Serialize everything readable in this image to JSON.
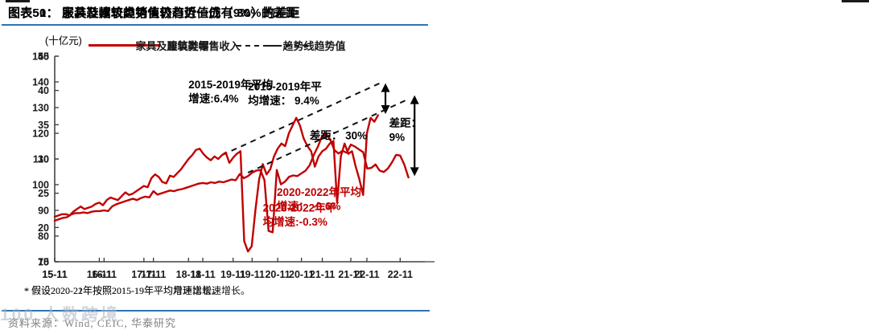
{
  "colors": {
    "series_red": "#C00000",
    "trend_black": "#1a1a1a",
    "rule_blue": "#2E74B5",
    "source_gray": "#8f8f8f"
  },
  "watermark": "100 人数跨境",
  "charts": [
    {
      "title": "图表50：  服装鞋帽较趋势值仍有近一成（9%）的差距",
      "unit_label": "(十亿元)",
      "legend": [
        {
          "label": "服装鞋帽",
          "style": "solid"
        },
        {
          "label": "趋势线",
          "style": "dashed"
        }
      ],
      "footnote": "* 假设2020-21年按照2015-19年平均月环比增速增长。",
      "source": "资料来源：Wind, CEIC, 华泰研究",
      "annotations": [
        {
          "name": "avg-growth-2015-2019",
          "lines": [
            "2015-2019年平均",
            "增速:6.4%"
          ],
          "color": "#000000",
          "x": 36,
          "v": 137.5
        },
        {
          "name": "avg-growth-2020-2022",
          "lines": [
            "2020-2022年平",
            "均增速:-0.3%"
          ],
          "color": "#C00000",
          "x": 56,
          "v": 89.5
        },
        {
          "name": "gap-label",
          "lines": [
            "差距：",
            "9%"
          ],
          "color": "#000000",
          "x": 90,
          "v": 122.5
        }
      ],
      "chart_data": {
        "type": "line",
        "title": "服装鞋帽较趋势值仍有近一成（9%）的差距",
        "ylabel": "十亿元",
        "ylim": [
          70,
          150
        ],
        "ytick_step": 10,
        "x_domain": [
          0,
          97
        ],
        "x_ticks": [
          "15-11",
          "16-11",
          "17-11",
          "18-11",
          "19-11",
          "20-11",
          "21-11",
          "22-11"
        ],
        "x_start": "2015-11",
        "x_freq": "monthly",
        "series": [
          {
            "name": "服装鞋帽",
            "color": "#C00000",
            "values": [
              87.5,
              88,
              88.5,
              88.5,
              88,
              89.5,
              90.5,
              91.5,
              90.5,
              91,
              91.5,
              92.5,
              93,
              92,
              94,
              95,
              94.5,
              94,
              95.5,
              97,
              96,
              96.5,
              97.5,
              98.5,
              99.5,
              99,
              102.5,
              104,
              103,
              101,
              100.5,
              103.5,
              103,
              104.5,
              106,
              108,
              110,
              111.5,
              113.5,
              114,
              112,
              110.5,
              109.5,
              111,
              110,
              111.5,
              112.5,
              108.5,
              110.5,
              112,
              113,
              78,
              74,
              76,
              90,
              102,
              108,
              104,
              106,
              111,
              114,
              116,
              115,
              120,
              123,
              126,
              123,
              118,
              115,
              113,
              107,
              111,
              113,
              114,
              116,
              117,
              93,
              111,
              116,
              112,
              113,
              107,
              102,
              96,
              120,
              126,
              124.5,
              127
            ]
          }
        ],
        "trend": {
          "name": "趋势线",
          "x1": 45,
          "v1": 111.5,
          "x2": 87.5,
          "v2": 139.5
        },
        "gap_arrow": {
          "x": 89,
          "v_top": 139.5,
          "v_bot": 127.5
        },
        "gap_value": "9%"
      }
    },
    {
      "title": "图表51：  家具及建筑类销售较趋势值仍有 30%的差距",
      "unit_label": "(十亿元)",
      "legend": [
        {
          "label": "家具及建筑类零售收入",
          "style": "solid"
        },
        {
          "label": "趋势值",
          "style": "dashed"
        }
      ],
      "footnote": "* 假设2020-22年按照2015-19年平均增速增长。",
      "source": "资料来源：Wind, CEIC, 华泰研究",
      "annotations": [
        {
          "name": "avg-growth-2015-2019",
          "lines": [
            "2015-2019年平",
            "均增速： 9.4%"
          ],
          "color": "#000000",
          "x": 47,
          "v": 40
        },
        {
          "name": "gap-label",
          "lines": [
            "差距： 30%"
          ],
          "color": "#000000",
          "x": 62,
          "v": 32.9
        },
        {
          "name": "avg-growth-2020-2022",
          "lines": [
            "2020-2022年平均",
            "增速： -0.6%"
          ],
          "color": "#C00000",
          "x": 54,
          "v": 24.6
        }
      ],
      "chart_data": {
        "type": "line",
        "title": "家具及建筑类销售较趋势值仍有 30%的差距",
        "ylabel": "十亿元",
        "ylim": [
          15,
          45
        ],
        "ytick_step": 5,
        "x_domain": [
          0,
          90
        ],
        "x_ticks": [
          "15-11",
          "16-11",
          "17-11",
          "18-11",
          "19-11",
          "20-11",
          "21-11",
          "22-11"
        ],
        "x_start": "2015-11",
        "x_freq": "monthly",
        "series": [
          {
            "name": "家具及建筑类零售收入",
            "color": "#C00000",
            "values": [
              21,
              21.2,
              21.4,
              21.5,
              21.9,
              22.1,
              22.1,
              22.2,
              22.1,
              22.3,
              22.4,
              22.4,
              22.5,
              22.4,
              23.1,
              23.4,
              23.6,
              23.8,
              24,
              24.2,
              24,
              24.3,
              24.5,
              24.4,
              25.3,
              24.8,
              25,
              25.2,
              25.4,
              25.3,
              25.5,
              25.6,
              25.8,
              26,
              26.2,
              26.4,
              26.5,
              26.4,
              26.6,
              26.5,
              26.7,
              26.6,
              26.8,
              27,
              26.9,
              27.8,
              27.2,
              27.5,
              28,
              28.3,
              28.4,
              26.9,
              19.5,
              19.3,
              28.4,
              26.3,
              26.7,
              27.4,
              27.6,
              27.5,
              27.9,
              28.3,
              29.1,
              30.6,
              31.8,
              33.3,
              33.7,
              32.8,
              31.3,
              30.8,
              31.2,
              30.9,
              32.1,
              31.8,
              31.4,
              31,
              28.6,
              28.7,
              29.2,
              28.3,
              28.1,
              28.6,
              29.5,
              30.6,
              30.5,
              29.2,
              27.3
            ]
          }
        ],
        "trend": {
          "name": "趋势值",
          "x1": 47,
          "v1": 28,
          "x2": 85.5,
          "v2": 38.6
        },
        "gap_arrow": {
          "x": 87.5,
          "v_top": 39.3,
          "v_bot": 27.5
        },
        "gap_value": "30%"
      }
    }
  ]
}
